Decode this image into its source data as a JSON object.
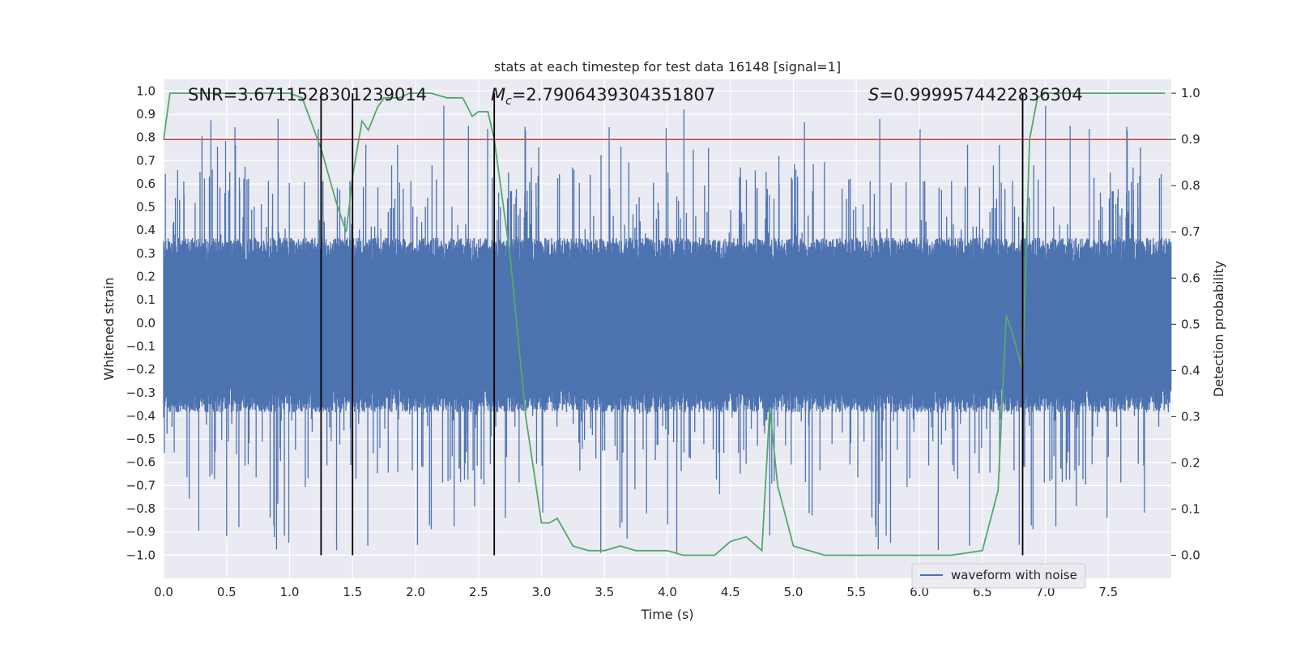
{
  "chart_data": {
    "type": "line",
    "title": "stats at each timestep for test data 16148 [signal=1]",
    "xlabel": "Time (s)",
    "ylabel_left": "Whitened strain",
    "ylabel_right": "Detection probability",
    "xlim": [
      0.0,
      8.0
    ],
    "ylim_left": [
      -1.1,
      1.05
    ],
    "ylim_right": [
      -0.05,
      1.03
    ],
    "x_ticks": [
      "0.0",
      "0.5",
      "1.0",
      "1.5",
      "2.0",
      "2.5",
      "3.0",
      "3.5",
      "4.0",
      "4.5",
      "5.0",
      "5.5",
      "6.0",
      "6.5",
      "7.0",
      "7.5"
    ],
    "y_ticks_left": [
      "1.0",
      "0.9",
      "0.8",
      "0.7",
      "0.6",
      "0.5",
      "0.4",
      "0.3",
      "0.2",
      "0.1",
      "0.0",
      "-0.1",
      "-0.2",
      "-0.3",
      "-0.4",
      "-0.5",
      "-0.6",
      "-0.7",
      "-0.8",
      "-0.9",
      "-1.0"
    ],
    "y_ticks_right": [
      "1.0",
      "0.9",
      "0.8",
      "0.7",
      "0.6",
      "0.5",
      "0.4",
      "0.3",
      "0.2",
      "0.1",
      "0.0"
    ],
    "annotations": {
      "snr": "SNR=3.6711528301239014",
      "mc": "=2.7906439304351807",
      "mc_symbol": "M",
      "mc_sub": "c",
      "s": "=0.9999574422836304",
      "s_symbol": "S"
    },
    "legend": {
      "label": "waveform with noise",
      "location": "lower-right"
    },
    "threshold": {
      "value": 0.9,
      "axis": "right",
      "color": "#c44e52"
    },
    "vertical_lines_x": [
      1.25,
      1.5,
      2.625,
      6.82
    ],
    "series": [
      {
        "name": "waveform with noise",
        "axis": "left",
        "color": "#4c72b0",
        "sample_rate": 512,
        "duration": 8.0,
        "core_amplitude": 0.35,
        "peak_range": [
          -1.0,
          0.94
        ]
      },
      {
        "name": "detection probability",
        "axis": "right",
        "color": "#55a868",
        "x": [
          0.0,
          0.05,
          0.125,
          0.25,
          0.5,
          0.75,
          1.0,
          1.1,
          1.25,
          1.375,
          1.45,
          1.5,
          1.575,
          1.625,
          1.7,
          1.75,
          1.875,
          1.95,
          2.0,
          2.125,
          2.25,
          2.375,
          2.45,
          2.5,
          2.575,
          2.625,
          2.75,
          2.875,
          3.0,
          3.0625,
          3.125,
          3.25,
          3.375,
          3.5,
          3.625,
          3.75,
          3.875,
          4.0,
          4.125,
          4.25,
          4.375,
          4.5,
          4.625,
          4.75,
          4.8125,
          4.875,
          5.0,
          5.125,
          5.25,
          5.375,
          5.5,
          6.0,
          6.25,
          6.5,
          6.625,
          6.69,
          6.75,
          6.82,
          6.875,
          6.9375,
          7.0,
          7.25,
          7.5,
          7.75,
          7.95
        ],
        "y": [
          0.9,
          1.0,
          1.0,
          1.0,
          1.0,
          1.0,
          1.0,
          0.99,
          0.88,
          0.76,
          0.7,
          0.82,
          0.94,
          0.92,
          0.97,
          0.99,
          0.99,
          1.0,
          1.0,
          1.0,
          0.99,
          0.99,
          0.95,
          0.96,
          0.96,
          0.9,
          0.65,
          0.3,
          0.07,
          0.07,
          0.08,
          0.02,
          0.01,
          0.01,
          0.02,
          0.01,
          0.01,
          0.01,
          0.0,
          0.0,
          0.0,
          0.03,
          0.04,
          0.01,
          0.32,
          0.15,
          0.02,
          0.01,
          0.0,
          0.0,
          0.0,
          0.0,
          0.0,
          0.01,
          0.14,
          0.52,
          0.47,
          0.4,
          0.9,
          0.99,
          1.0,
          1.0,
          1.0,
          1.0,
          1.0
        ]
      }
    ]
  }
}
